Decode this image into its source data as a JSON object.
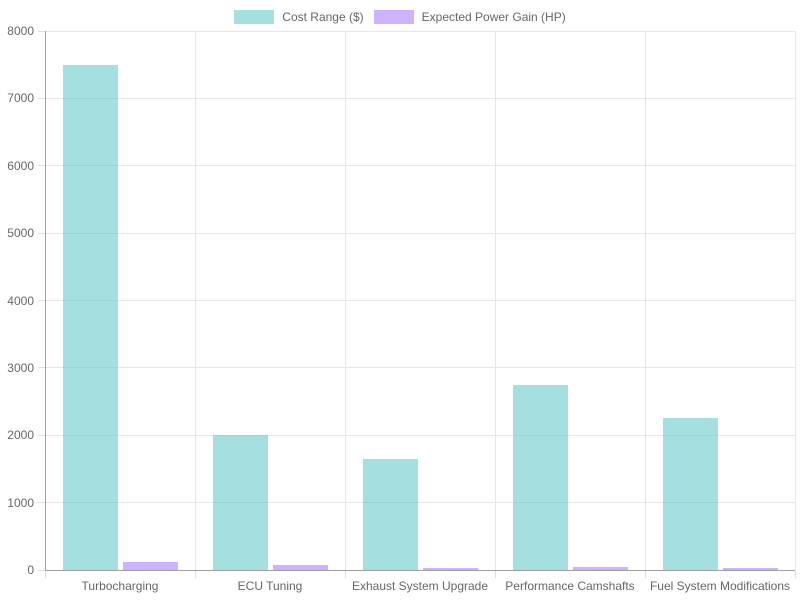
{
  "chart_data": {
    "type": "bar",
    "categories": [
      "Turbocharging",
      "ECU Tuning",
      "Exhaust System Upgrade",
      "Performance Camshafts",
      "Fuel System Modifications"
    ],
    "series": [
      {
        "name": "Cost Range ($)",
        "color": "rgba(75,192,192,0.5)",
        "values": [
          7500,
          2000,
          1650,
          2750,
          2250
        ]
      },
      {
        "name": "Expected Power Gain (HP)",
        "color": "rgba(153,102,255,0.5)",
        "values": [
          120,
          75,
          30,
          45,
          35
        ]
      }
    ],
    "title": "",
    "xlabel": "",
    "ylabel": "",
    "ylim": [
      0,
      8000
    ],
    "ytick_step": 1000,
    "grid": true,
    "legend_position": "top",
    "text_color": "#666666",
    "gridline_color": "#e6e6e6",
    "axis_color": "#9e9e9e"
  }
}
